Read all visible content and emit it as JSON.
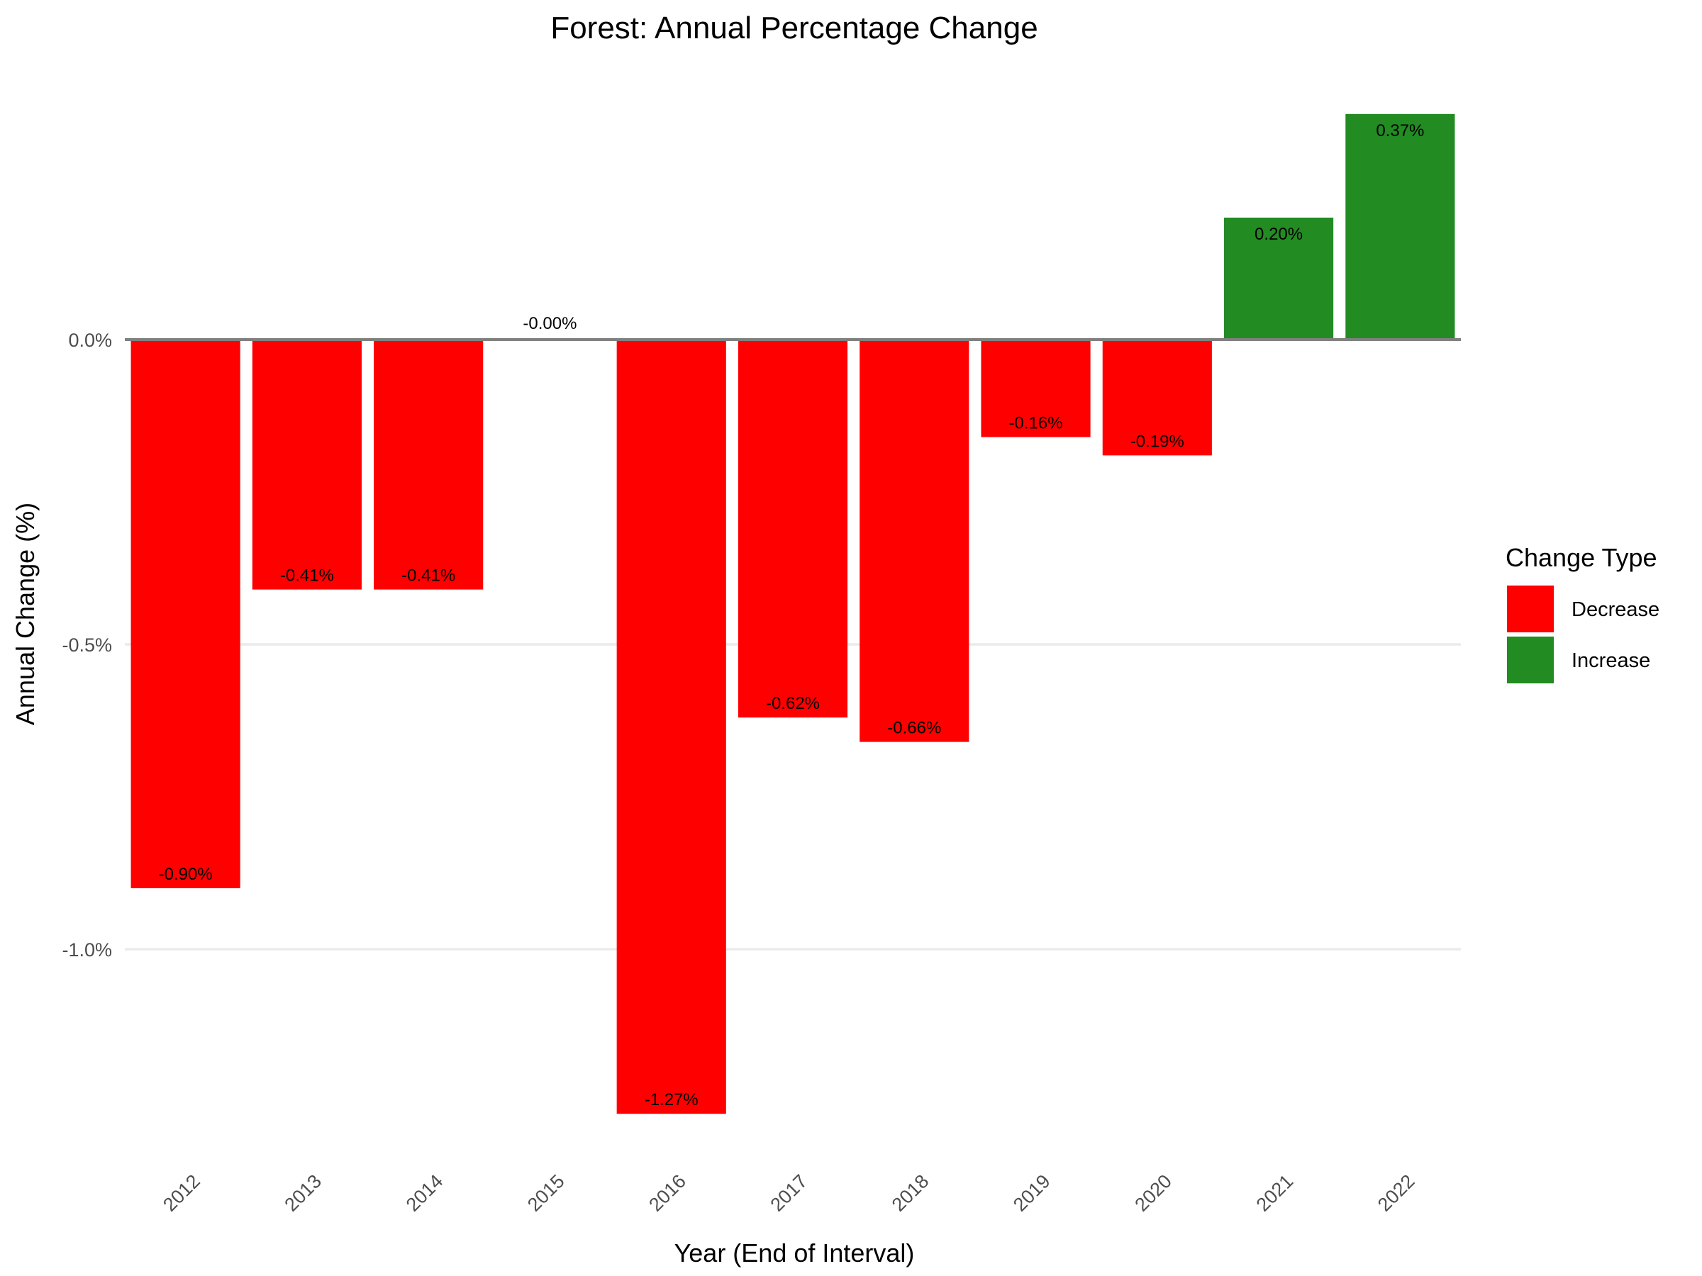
{
  "chart_data": {
    "type": "bar",
    "title": "Forest: Annual Percentage Change",
    "xlabel": "Year (End of Interval)",
    "ylabel": "Annual Change (%)",
    "categories": [
      "2012",
      "2013",
      "2014",
      "2015",
      "2016",
      "2017",
      "2018",
      "2019",
      "2020",
      "2021",
      "2022"
    ],
    "values": [
      -0.9,
      -0.41,
      -0.41,
      -0.0,
      -1.27,
      -0.62,
      -0.66,
      -0.16,
      -0.19,
      0.2,
      0.37
    ],
    "labels": [
      "-0.90%",
      "-0.41%",
      "-0.41%",
      "-0.00%",
      "-1.27%",
      "-0.62%",
      "-0.66%",
      "-0.16%",
      "-0.19%",
      "0.20%",
      "0.37%"
    ],
    "types": [
      "Decrease",
      "Decrease",
      "Decrease",
      "Decrease",
      "Decrease",
      "Decrease",
      "Decrease",
      "Decrease",
      "Decrease",
      "Increase",
      "Increase"
    ],
    "y_ticks": [
      0.0,
      -0.5,
      -1.0
    ],
    "y_tick_labels": [
      "0.0%",
      "-0.5%",
      "-1.0%"
    ],
    "ylim": [
      -1.345,
      0.395
    ],
    "grid": true,
    "legend": {
      "title": "Change Type",
      "position": "right",
      "items": [
        {
          "label": "Decrease",
          "color": "#ff0000"
        },
        {
          "label": "Increase",
          "color": "#228b22"
        }
      ]
    },
    "colors": {
      "Decrease": "#ff0000",
      "Increase": "#228b22",
      "zero_line": "#808080",
      "grid": "#ebebeb"
    }
  }
}
